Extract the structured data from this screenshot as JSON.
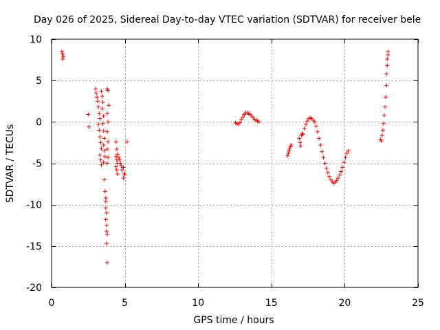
{
  "chart_data": {
    "type": "scatter",
    "title": "Day 026 of 2025, Sidereal Day-to-day VTEC variation (SDTVAR) for receiver bele",
    "xlabel": "GPS time / hours",
    "ylabel": "SDTVAR / TECUs",
    "xlim": [
      0,
      25
    ],
    "ylim": [
      -20,
      10
    ],
    "xticks": [
      0,
      5,
      10,
      15,
      20,
      25
    ],
    "yticks": [
      10,
      5,
      0,
      -5,
      -10,
      -15,
      -20
    ],
    "grid": true,
    "marker": "+",
    "series": [
      {
        "name": "SDTVAR",
        "color": "#ff0000",
        "points": [
          [
            0.7,
            8.5
          ],
          [
            0.75,
            8.2
          ],
          [
            0.8,
            7.9
          ],
          [
            0.75,
            7.6
          ],
          [
            2.5,
            0.9
          ],
          [
            2.55,
            -0.6
          ],
          [
            3.0,
            4.0
          ],
          [
            3.05,
            3.5
          ],
          [
            3.1,
            3.0
          ],
          [
            3.15,
            2.5
          ],
          [
            3.2,
            1.8
          ],
          [
            3.25,
            1.0
          ],
          [
            3.3,
            0.4
          ],
          [
            3.2,
            -0.3
          ],
          [
            3.25,
            -1.0
          ],
          [
            3.3,
            -1.8
          ],
          [
            3.35,
            -2.5
          ],
          [
            3.4,
            -3.2
          ],
          [
            3.3,
            -4.0
          ],
          [
            3.35,
            -4.6
          ],
          [
            3.4,
            -5.2
          ],
          [
            3.4,
            3.7
          ],
          [
            3.45,
            3.1
          ],
          [
            3.5,
            2.4
          ],
          [
            3.45,
            1.6
          ],
          [
            3.55,
            0.7
          ],
          [
            3.5,
            -0.2
          ],
          [
            3.55,
            -1.1
          ],
          [
            3.6,
            -2.0
          ],
          [
            3.55,
            -2.8
          ],
          [
            3.6,
            -3.5
          ],
          [
            3.65,
            -4.2
          ],
          [
            3.55,
            -4.9
          ],
          [
            3.6,
            -7.0
          ],
          [
            3.65,
            -8.4
          ],
          [
            3.7,
            -9.2
          ],
          [
            3.7,
            -9.6
          ],
          [
            3.7,
            -10.4
          ],
          [
            3.75,
            -11.0
          ],
          [
            3.7,
            -11.8
          ],
          [
            3.75,
            -12.5
          ],
          [
            3.75,
            -13.2
          ],
          [
            3.8,
            -13.6
          ],
          [
            3.75,
            -14.7
          ],
          [
            3.8,
            -17.0
          ],
          [
            3.8,
            4.0
          ],
          [
            3.85,
            3.8
          ],
          [
            3.9,
            2.0
          ],
          [
            3.8,
            1.0
          ],
          [
            3.85,
            0.0
          ],
          [
            3.8,
            -1.2
          ],
          [
            3.85,
            -2.4
          ],
          [
            3.8,
            -3.3
          ],
          [
            3.85,
            -4.3
          ],
          [
            3.8,
            -5.0
          ],
          [
            4.4,
            -2.4
          ],
          [
            4.45,
            -3.3
          ],
          [
            4.5,
            -3.9
          ],
          [
            4.4,
            -4.2
          ],
          [
            4.45,
            -4.6
          ],
          [
            4.5,
            -5.0
          ],
          [
            4.4,
            -5.4
          ],
          [
            4.45,
            -5.8
          ],
          [
            4.5,
            -6.3
          ],
          [
            4.6,
            -4.3
          ],
          [
            4.65,
            -4.6
          ],
          [
            4.7,
            -5.0
          ],
          [
            4.75,
            -5.3
          ],
          [
            4.8,
            -5.8
          ],
          [
            4.9,
            -5.5
          ],
          [
            4.95,
            -6.2
          ],
          [
            4.9,
            -6.8
          ],
          [
            5.0,
            -6.4
          ],
          [
            5.15,
            -2.4
          ],
          [
            12.55,
            -0.1
          ],
          [
            12.65,
            -0.2
          ],
          [
            12.75,
            -0.3
          ],
          [
            12.85,
            -0.1
          ],
          [
            12.95,
            0.3
          ],
          [
            13.05,
            0.6
          ],
          [
            13.15,
            0.9
          ],
          [
            13.25,
            1.1
          ],
          [
            13.35,
            1.1
          ],
          [
            13.45,
            1.0
          ],
          [
            13.55,
            0.9
          ],
          [
            13.65,
            0.7
          ],
          [
            13.75,
            0.5
          ],
          [
            13.85,
            0.3
          ],
          [
            13.95,
            0.2
          ],
          [
            14.05,
            0.1
          ],
          [
            14.15,
            0.0
          ],
          [
            16.1,
            -4.1
          ],
          [
            16.15,
            -3.8
          ],
          [
            16.2,
            -3.5
          ],
          [
            16.25,
            -3.2
          ],
          [
            16.3,
            -3.0
          ],
          [
            16.35,
            -2.8
          ],
          [
            16.9,
            -2.0
          ],
          [
            16.95,
            -2.5
          ],
          [
            17.0,
            -2.9
          ],
          [
            17.05,
            -1.6
          ],
          [
            17.1,
            -1.4
          ],
          [
            17.15,
            -1.5
          ],
          [
            17.25,
            -0.8
          ],
          [
            17.35,
            -0.3
          ],
          [
            17.45,
            0.1
          ],
          [
            17.55,
            0.4
          ],
          [
            17.65,
            0.5
          ],
          [
            17.75,
            0.4
          ],
          [
            17.85,
            0.2
          ],
          [
            17.95,
            0.0
          ],
          [
            18.05,
            -0.5
          ],
          [
            18.15,
            -1.2
          ],
          [
            18.25,
            -2.0
          ],
          [
            18.35,
            -2.8
          ],
          [
            18.45,
            -3.6
          ],
          [
            18.55,
            -4.3
          ],
          [
            18.65,
            -5.0
          ],
          [
            18.75,
            -5.6
          ],
          [
            18.85,
            -6.1
          ],
          [
            18.95,
            -6.6
          ],
          [
            19.05,
            -7.0
          ],
          [
            19.15,
            -7.2
          ],
          [
            19.25,
            -7.4
          ],
          [
            19.35,
            -7.3
          ],
          [
            19.45,
            -7.1
          ],
          [
            19.55,
            -6.8
          ],
          [
            19.65,
            -6.4
          ],
          [
            19.75,
            -6.0
          ],
          [
            19.85,
            -5.5
          ],
          [
            19.95,
            -4.9
          ],
          [
            20.05,
            -4.3
          ],
          [
            20.15,
            -3.8
          ],
          [
            20.25,
            -3.5
          ],
          [
            22.45,
            -2.1
          ],
          [
            22.5,
            -2.3
          ],
          [
            22.55,
            -1.6
          ],
          [
            22.6,
            -1.0
          ],
          [
            22.65,
            -0.2
          ],
          [
            22.7,
            0.8
          ],
          [
            22.75,
            1.8
          ],
          [
            22.8,
            3.0
          ],
          [
            22.85,
            4.4
          ],
          [
            22.85,
            5.8
          ],
          [
            22.9,
            6.8
          ],
          [
            22.9,
            7.6
          ],
          [
            22.95,
            8.1
          ],
          [
            22.95,
            8.5
          ]
        ]
      }
    ]
  }
}
